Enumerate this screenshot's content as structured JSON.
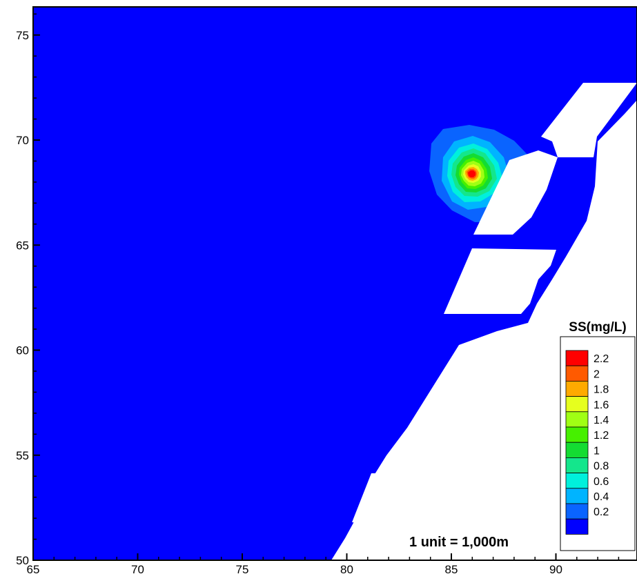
{
  "chart_data": {
    "type": "contour",
    "x_ticks": [
      "65",
      "70",
      "75",
      "80",
      "85",
      "90"
    ],
    "y_ticks": [
      "50",
      "55",
      "60",
      "65",
      "70",
      "75"
    ],
    "xlim": [
      65,
      94
    ],
    "ylim": [
      50,
      76.5
    ],
    "legend": {
      "title": "SS(mg/L)",
      "levels": [
        "2.2",
        "2",
        "1.8",
        "1.6",
        "1.4",
        "1.2",
        "1",
        "0.8",
        "0.6",
        "0.4",
        "0.2"
      ],
      "colors": [
        "#ff0000",
        "#ff5a00",
        "#ffaa00",
        "#e6ff1e",
        "#a0ff14",
        "#46f000",
        "#14dc32",
        "#14e68c",
        "#00f0dc",
        "#00b4ff",
        "#0a64ff",
        "#0000ff"
      ],
      "placement": "bottom-right"
    },
    "plume_peak": {
      "x": 85.9,
      "y": 68.7,
      "value": 2.2
    },
    "scale_note": "1 unit = 1,000m",
    "background_color": "#0000ff",
    "land_color": "#ffffff"
  }
}
